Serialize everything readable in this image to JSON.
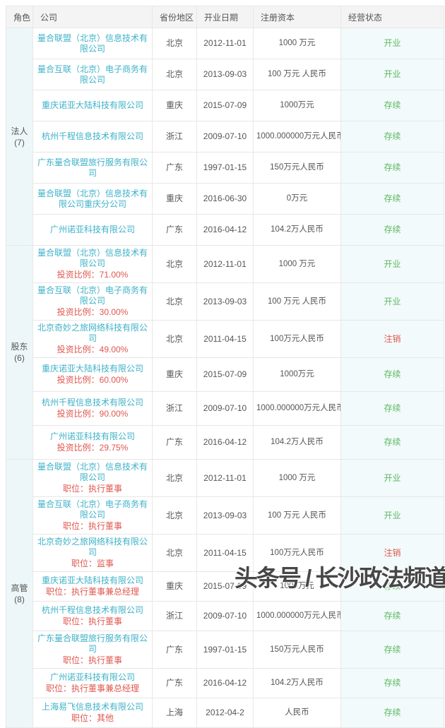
{
  "watermark": "头条号 / 长沙政法频道",
  "colors": {
    "company_link": "#3db1c8",
    "sub_label_red": "#e0574f",
    "status_green": "#5fb762",
    "status_red": "#e0574f",
    "header_bg": "#f4f4f4",
    "role_col_bg": "#edf7f9",
    "status_col_bg": "#f2fafb",
    "border": "#e7e7e7",
    "text": "#555555"
  },
  "table": {
    "headers": [
      "角色",
      "公司",
      "省份地区",
      "开业日期",
      "注册资本",
      "经营状态"
    ],
    "groups": [
      {
        "role": "法人",
        "count": "(7)",
        "rows": [
          {
            "company": "量合联盟（北京）信息技术有限公司",
            "province": "北京",
            "date": "2012-11-01",
            "capital": "1000 万元",
            "status": "开业"
          },
          {
            "company": "量合互联（北京）电子商务有限公司",
            "province": "北京",
            "date": "2013-09-03",
            "capital": "100 万元 人民币",
            "status": "开业"
          },
          {
            "company": "重庆诺亚大陆科技有限公司",
            "province": "重庆",
            "date": "2015-07-09",
            "capital": "1000万元",
            "status": "存续"
          },
          {
            "company": "杭州千程信息技术有限公司",
            "province": "浙江",
            "date": "2009-07-10",
            "capital": "1000.000000万元人民币",
            "status": "存续"
          },
          {
            "company": "广东量合联盟旅行服务有限公司",
            "province": "广东",
            "date": "1997-01-15",
            "capital": "150万元人民币",
            "status": "存续"
          },
          {
            "company": "量合联盟（北京）信息技术有限公司重庆分公司",
            "province": "重庆",
            "date": "2016-06-30",
            "capital": "0万元",
            "status": "存续"
          },
          {
            "company": "广州诺亚科技有限公司",
            "province": "广东",
            "date": "2016-04-12",
            "capital": "104.2万人民币",
            "status": "存续"
          }
        ]
      },
      {
        "role": "股东",
        "count": "(6)",
        "rows": [
          {
            "company": "量合联盟（北京）信息技术有限公司",
            "sub": "投资比例：71.00%",
            "province": "北京",
            "date": "2012-11-01",
            "capital": "1000 万元",
            "status": "开业"
          },
          {
            "company": "量合互联（北京）电子商务有限公司",
            "sub": "投资比例：30.00%",
            "province": "北京",
            "date": "2013-09-03",
            "capital": "100 万元 人民币",
            "status": "开业"
          },
          {
            "company": "北京奇妙之旅网络科技有限公司",
            "sub": "投资比例：49.00%",
            "province": "北京",
            "date": "2011-04-15",
            "capital": "100万元人民币",
            "status": "注销"
          },
          {
            "company": "重庆诺亚大陆科技有限公司",
            "sub": "投资比例：60.00%",
            "province": "重庆",
            "date": "2015-07-09",
            "capital": "1000万元",
            "status": "存续"
          },
          {
            "company": "杭州千程信息技术有限公司",
            "sub": "投资比例：90.00%",
            "province": "浙江",
            "date": "2009-07-10",
            "capital": "1000.000000万元人民币",
            "status": "存续"
          },
          {
            "company": "广州诺亚科技有限公司",
            "sub": "投资比例：29.75%",
            "province": "广东",
            "date": "2016-04-12",
            "capital": "104.2万人民币",
            "status": "存续"
          }
        ]
      },
      {
        "role": "高管",
        "count": "(8)",
        "rows": [
          {
            "company": "量合联盟（北京）信息技术有限公司",
            "sub": "职位：执行董事",
            "province": "北京",
            "date": "2012-11-01",
            "capital": "1000 万元",
            "status": "开业"
          },
          {
            "company": "量合互联（北京）电子商务有限公司",
            "sub": "职位：执行董事",
            "province": "北京",
            "date": "2013-09-03",
            "capital": "100 万元 人民币",
            "status": "开业"
          },
          {
            "company": "北京奇妙之旅网络科技有限公司",
            "sub": "职位：监事",
            "province": "北京",
            "date": "2011-04-15",
            "capital": "100万元人民币",
            "status": "注销"
          },
          {
            "company": "重庆诺亚大陆科技有限公司",
            "sub": "职位：执行董事兼总经理",
            "province": "重庆",
            "date": "2015-07-09",
            "capital": "1000万元",
            "status": "存续"
          },
          {
            "company": "杭州千程信息技术有限公司",
            "sub": "职位：执行董事",
            "province": "浙江",
            "date": "2009-07-10",
            "capital": "1000.000000万元人民币",
            "status": "存续"
          },
          {
            "company": "广东量合联盟旅行服务有限公司",
            "sub": "职位：执行董事",
            "province": "广东",
            "date": "1997-01-15",
            "capital": "150万元人民币",
            "status": "存续"
          },
          {
            "company": "广州诺亚科技有限公司",
            "sub": "职位：执行董事兼总经理",
            "province": "广东",
            "date": "2016-04-12",
            "capital": "104.2万人民币",
            "status": "存续"
          },
          {
            "company": "上海易飞信息技术有限公司",
            "sub": "职位：其他",
            "province": "上海",
            "date": "2012-04-2",
            "capital": "人民币",
            "status": "存续"
          }
        ]
      }
    ]
  }
}
